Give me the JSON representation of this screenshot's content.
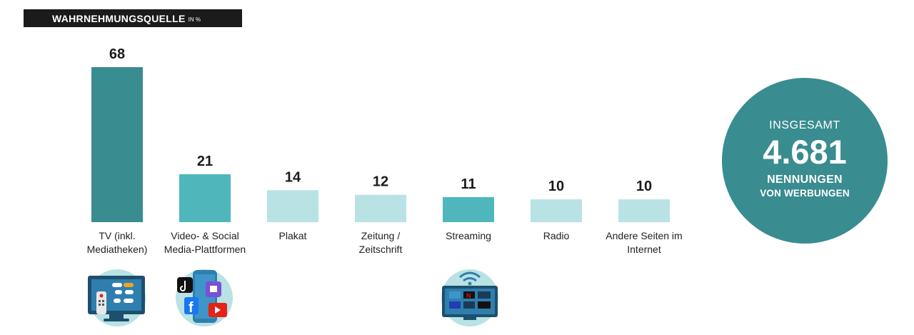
{
  "header": {
    "title": "WAHRNEHMUNGSQUELLE",
    "unit": "IN %"
  },
  "chart_data": {
    "type": "bar",
    "categories": [
      "TV (inkl.\nMediatheken)",
      "Video- & Social\nMedia-Plattformen",
      "Plakat",
      "Zeitung /\nZeitschrift",
      "Streaming",
      "Radio",
      "Andere Seiten im\nInternet"
    ],
    "values": [
      68,
      21,
      14,
      12,
      11,
      10,
      10
    ],
    "colors": [
      "#398c90",
      "#4fb7bb",
      "#b9e2e4",
      "#b9e2e4",
      "#4fb7bb",
      "#b9e2e4",
      "#b9e2e4"
    ],
    "title": "WAHRNEHMUNGSQUELLE",
    "ylim": [
      0,
      68
    ],
    "grid": false
  },
  "total": {
    "label": "INSGESAMT",
    "value": "4.681",
    "sub1": "NENNUNGEN",
    "sub2": "VON WERBUNGEN"
  },
  "icons": [
    {
      "category_index": 0,
      "name": "tv-mediatheken-icon"
    },
    {
      "category_index": 1,
      "name": "social-media-platforms-icon"
    },
    {
      "category_index": 4,
      "name": "streaming-tv-icon"
    }
  ],
  "colors": {
    "dark_teal": "#398c90",
    "mid_teal": "#4fb7bb",
    "light_teal": "#b9e2e4",
    "title_bg": "#1b1b1b"
  }
}
